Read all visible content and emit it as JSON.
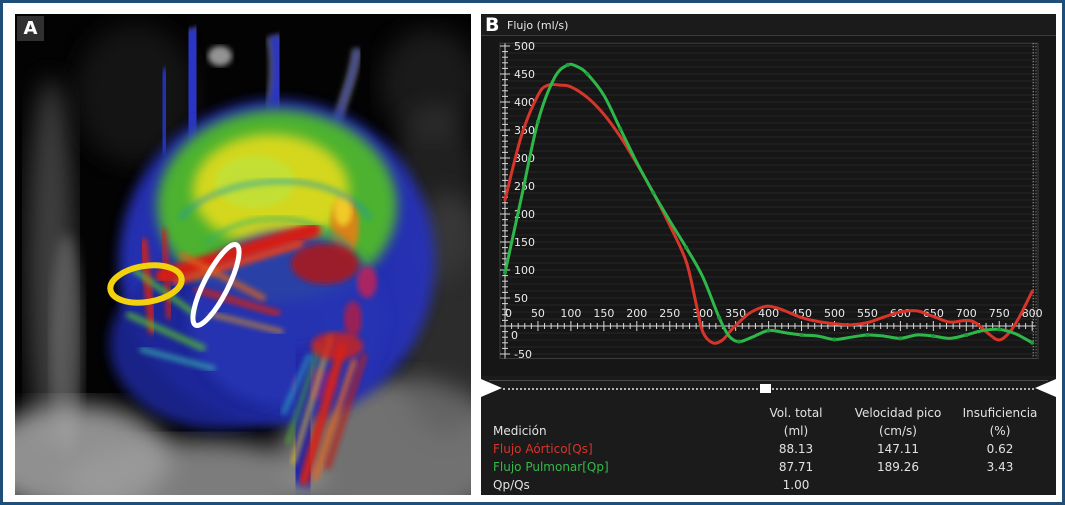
{
  "figure": {
    "panel_a": {
      "label": "A"
    },
    "panel_b": {
      "label": "B"
    }
  },
  "colors": {
    "aortic_red": "#d7352a",
    "pulmonary_green": "#2eb84a",
    "frame_blue": "#1f4e79",
    "panel_bg": "#1b1b1b"
  },
  "annotations": {
    "yellow_ellipse": "aortic-valve-roi",
    "white_ellipse": "pulmonary-valve-roi"
  },
  "chart_data": {
    "type": "line",
    "title": "Flujo (ml/s)",
    "xlabel": "",
    "ylabel": "Flujo (ml/s)",
    "xlim": [
      0,
      800
    ],
    "ylim": [
      -75,
      520
    ],
    "x_ticks": [
      0,
      50,
      100,
      150,
      200,
      250,
      300,
      350,
      400,
      450,
      500,
      550,
      600,
      650,
      700,
      750,
      800
    ],
    "y_ticks": [
      -50,
      0,
      50,
      100,
      150,
      200,
      250,
      300,
      350,
      400,
      450,
      500
    ],
    "grid": "horizontal",
    "legend_position": "table-below",
    "series": [
      {
        "name": "Flujo Aórtico[Qs]",
        "color": "#d7352a",
        "points": [
          [
            0,
            225
          ],
          [
            25,
            340
          ],
          [
            50,
            412
          ],
          [
            65,
            430
          ],
          [
            85,
            430
          ],
          [
            100,
            427
          ],
          [
            125,
            408
          ],
          [
            150,
            378
          ],
          [
            175,
            338
          ],
          [
            200,
            290
          ],
          [
            225,
            238
          ],
          [
            250,
            180
          ],
          [
            275,
            115
          ],
          [
            290,
            40
          ],
          [
            300,
            -10
          ],
          [
            315,
            -30
          ],
          [
            330,
            -25
          ],
          [
            345,
            -5
          ],
          [
            370,
            22
          ],
          [
            395,
            35
          ],
          [
            410,
            33
          ],
          [
            425,
            27
          ],
          [
            450,
            15
          ],
          [
            475,
            8
          ],
          [
            500,
            4
          ],
          [
            525,
            2
          ],
          [
            550,
            6
          ],
          [
            575,
            16
          ],
          [
            600,
            25
          ],
          [
            625,
            27
          ],
          [
            650,
            17
          ],
          [
            675,
            7
          ],
          [
            700,
            10
          ],
          [
            715,
            5
          ],
          [
            735,
            -15
          ],
          [
            750,
            -25
          ],
          [
            765,
            -12
          ],
          [
            780,
            15
          ],
          [
            800,
            62
          ]
        ]
      },
      {
        "name": "Flujo Pulmonar[Qp]",
        "color": "#2eb84a",
        "points": [
          [
            0,
            95
          ],
          [
            25,
            230
          ],
          [
            50,
            365
          ],
          [
            75,
            443
          ],
          [
            95,
            466
          ],
          [
            110,
            463
          ],
          [
            125,
            450
          ],
          [
            150,
            412
          ],
          [
            175,
            352
          ],
          [
            200,
            292
          ],
          [
            225,
            238
          ],
          [
            250,
            188
          ],
          [
            275,
            140
          ],
          [
            300,
            88
          ],
          [
            325,
            15
          ],
          [
            340,
            -18
          ],
          [
            355,
            -28
          ],
          [
            375,
            -20
          ],
          [
            400,
            -8
          ],
          [
            425,
            -12
          ],
          [
            450,
            -16
          ],
          [
            475,
            -18
          ],
          [
            500,
            -24
          ],
          [
            525,
            -20
          ],
          [
            550,
            -16
          ],
          [
            575,
            -18
          ],
          [
            600,
            -22
          ],
          [
            625,
            -16
          ],
          [
            650,
            -18
          ],
          [
            675,
            -22
          ],
          [
            700,
            -16
          ],
          [
            725,
            -8
          ],
          [
            750,
            -6
          ],
          [
            775,
            -14
          ],
          [
            800,
            -30
          ]
        ]
      }
    ]
  },
  "scrubber": {
    "position_pct": 48.5
  },
  "table": {
    "header": {
      "vol_total_title": "Vol. total",
      "velocidad_title": "Velocidad pico",
      "insuficiencia_title": "Insuficiencia",
      "row_label": "Medición",
      "vol_total_unit": "(ml)",
      "velocidad_unit": "(cm/s)",
      "insuficiencia_unit": "(%)"
    },
    "rows": [
      {
        "label": "Flujo Aórtico[Qs]",
        "vol_total": "88.13",
        "velocidad_pico": "147.11",
        "insuficiencia": "0.62"
      },
      {
        "label": "Flujo Pulmonar[Qp]",
        "vol_total": "87.71",
        "velocidad_pico": "189.26",
        "insuficiencia": "3.43"
      },
      {
        "label": "Qp/Qs",
        "vol_total": "1.00",
        "velocidad_pico": "",
        "insuficiencia": ""
      }
    ]
  }
}
